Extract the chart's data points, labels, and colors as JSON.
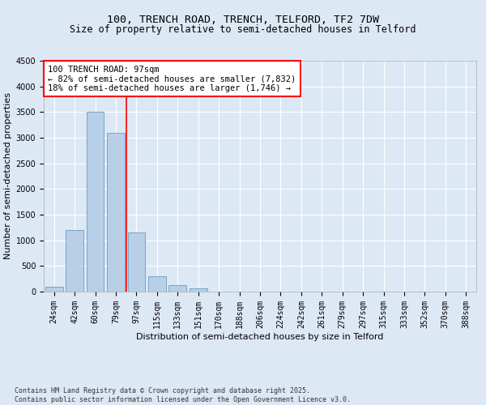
{
  "title": "100, TRENCH ROAD, TRENCH, TELFORD, TF2 7DW",
  "subtitle": "Size of property relative to semi-detached houses in Telford",
  "xlabel": "Distribution of semi-detached houses by size in Telford",
  "ylabel": "Number of semi-detached properties",
  "categories": [
    "24sqm",
    "42sqm",
    "60sqm",
    "79sqm",
    "97sqm",
    "115sqm",
    "133sqm",
    "151sqm",
    "170sqm",
    "188sqm",
    "206sqm",
    "224sqm",
    "242sqm",
    "261sqm",
    "279sqm",
    "297sqm",
    "315sqm",
    "333sqm",
    "352sqm",
    "370sqm",
    "388sqm"
  ],
  "values": [
    100,
    1200,
    3500,
    3100,
    1150,
    300,
    120,
    60,
    5,
    0,
    0,
    0,
    0,
    0,
    0,
    0,
    0,
    0,
    0,
    0,
    0
  ],
  "bar_color": "#b8cfe8",
  "bar_edge_color": "#6a9ec0",
  "property_line_index": 4,
  "property_value_sqm": 97,
  "pct_smaller": 82,
  "pct_larger": 18,
  "count_smaller": "7,832",
  "count_larger": "1,746",
  "vline_color": "red",
  "ylim": [
    0,
    4500
  ],
  "yticks": [
    0,
    500,
    1000,
    1500,
    2000,
    2500,
    3000,
    3500,
    4000,
    4500
  ],
  "bg_color": "#dde8f5",
  "plot_bg_color": "#dde8f5",
  "grid_color": "white",
  "annotation_box_color": "red",
  "footer_text": "Contains HM Land Registry data © Crown copyright and database right 2025.\nContains public sector information licensed under the Open Government Licence v3.0.",
  "title_fontsize": 9.5,
  "subtitle_fontsize": 8.5,
  "axis_label_fontsize": 8,
  "tick_fontsize": 7,
  "annotation_fontsize": 7.5,
  "footer_fontsize": 6
}
